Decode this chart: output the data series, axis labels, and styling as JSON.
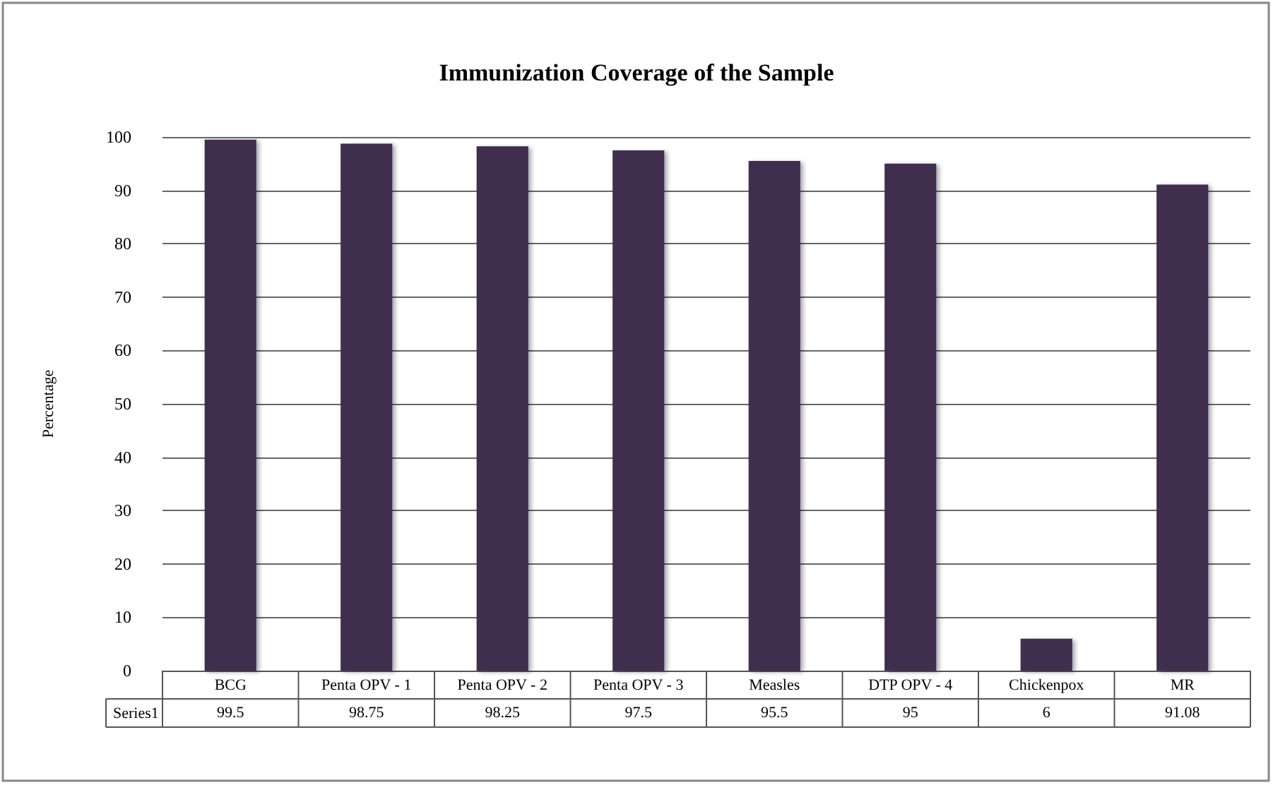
{
  "chart_data": {
    "type": "bar",
    "title": "Immunization Coverage of the Sample",
    "ylabel": "Percentage",
    "categories": [
      "BCG",
      "Penta OPV - 1",
      "Penta OPV - 2",
      "Penta OPV - 3",
      "Measles",
      "DTP OPV - 4",
      "Chickenpox",
      "MR"
    ],
    "series": [
      {
        "name": "Series1",
        "color": "#3f2d4f",
        "values": [
          99.5,
          98.75,
          98.25,
          97.5,
          95.5,
          95,
          6,
          91.08
        ]
      }
    ],
    "ylim": [
      0,
      100
    ],
    "yticks": [
      0,
      10,
      20,
      30,
      40,
      50,
      60,
      70,
      80,
      90,
      100
    ],
    "grid": "y",
    "legend": false,
    "data_labels": true
  }
}
